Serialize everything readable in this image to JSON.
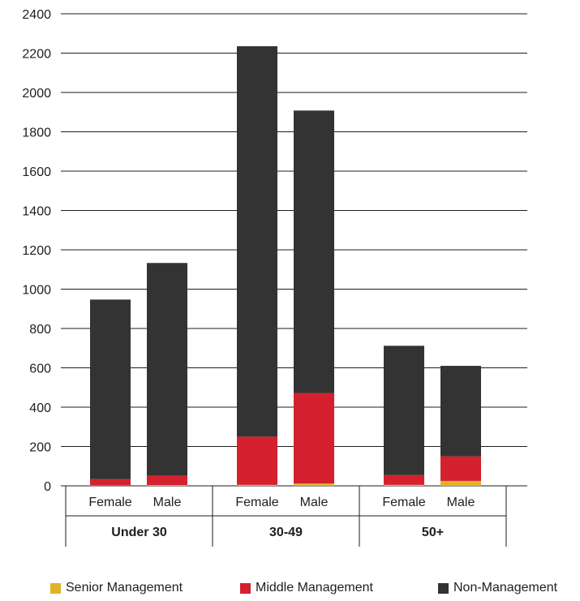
{
  "chart_data": {
    "type": "bar",
    "stacked": true,
    "groups": [
      {
        "label": "Under 30",
        "categories": [
          "Female",
          "Male"
        ]
      },
      {
        "label": "30-49",
        "categories": [
          "Female",
          "Male"
        ]
      },
      {
        "label": "50+",
        "categories": [
          "Female",
          "Male"
        ]
      }
    ],
    "categories": [
      "Female",
      "Male",
      "Female",
      "Male",
      "Female",
      "Male"
    ],
    "series": [
      {
        "name": "Senior Management",
        "color": "#e0b32a",
        "values": [
          2,
          4,
          5,
          12,
          5,
          25
        ]
      },
      {
        "name": "Middle Management",
        "color": "#d4202f",
        "values": [
          32,
          48,
          245,
          460,
          50,
          125
        ]
      },
      {
        "name": "Non-Management",
        "color": "#333333",
        "values": [
          913,
          1081,
          1985,
          1436,
          657,
          460
        ]
      }
    ],
    "ylim": [
      0,
      2400
    ],
    "yticks": [
      "0",
      "200",
      "400",
      "600",
      "800",
      "1000",
      "1200",
      "1400",
      "1600",
      "1800",
      "2000",
      "2200",
      "2400"
    ],
    "grid": true,
    "legend_position": "bottom",
    "title": "",
    "xlabel": "",
    "ylabel": ""
  }
}
